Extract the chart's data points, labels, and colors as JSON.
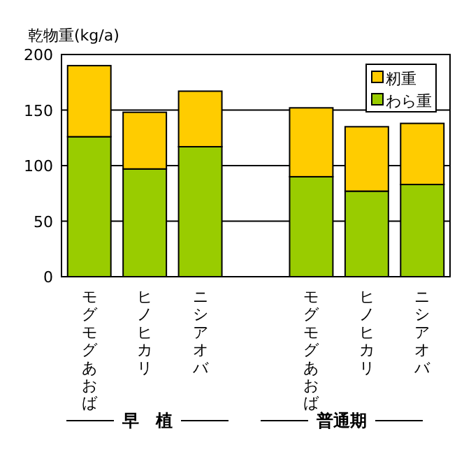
{
  "chart_data": {
    "type": "bar",
    "stacked": true,
    "ylabel": "乾物重(kg/a)",
    "categories": [
      "モグモグあおば",
      "ヒノヒカリ",
      "ニシアオバ",
      null,
      "モグモグあおば",
      "ヒノヒカリ",
      "ニシアオバ"
    ],
    "series": [
      {
        "name": "わら重",
        "color": "#99cc00",
        "values": [
          126,
          97,
          117,
          null,
          90,
          77,
          83
        ]
      },
      {
        "name": "籾重",
        "color": "#ffcc00",
        "values": [
          64,
          51,
          50,
          null,
          62,
          58,
          55
        ]
      }
    ],
    "ylim": [
      0,
      200
    ],
    "yticks": [
      0,
      50,
      100,
      150,
      200
    ],
    "grid": "y",
    "legend": "top right",
    "annotations": [
      "早　植",
      "普通期"
    ]
  }
}
